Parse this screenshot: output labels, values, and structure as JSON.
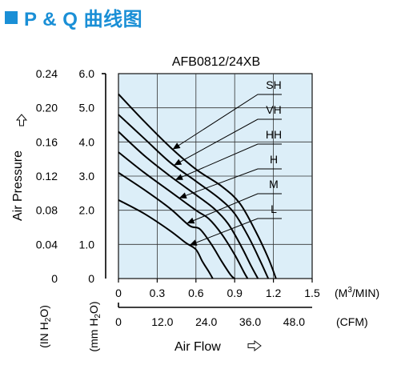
{
  "heading": {
    "text": "P & Q 曲线图",
    "icon": "blue-square-bullet",
    "color": "#1a8fd6"
  },
  "chart_data": {
    "type": "line",
    "title": "AFB0812/24XB",
    "xlabel": "Air Flow",
    "x_units": "(M3/MIN)",
    "x_units_parts": {
      "base": "(M",
      "sup": "3",
      "tail": "/MIN)"
    },
    "x2_units": "(CFM)",
    "ylabel": "Air Pressure",
    "y_units_left": "(IN H2O)",
    "y_units_right": "(mm H2O)",
    "xlim": [
      0,
      1.5
    ],
    "ylim": [
      0,
      6.0
    ],
    "x_ticks": [
      "0",
      "0.3",
      "0.6",
      "0.9",
      "1.2",
      "1.5"
    ],
    "x2_ticks": [
      "0",
      "12.0",
      "24.0",
      "36.0",
      "48.0"
    ],
    "x2_tick_values": [
      0,
      0.34,
      0.68,
      1.02,
      1.36
    ],
    "y_ticks": [
      "0",
      "1.0",
      "2.0",
      "3.0",
      "4.0",
      "5.0",
      "6.0"
    ],
    "y2_ticks": [
      "0",
      "0.04",
      "0.08",
      "0.12",
      "0.16",
      "0.20",
      "0.24"
    ],
    "grid": true,
    "plot_background": "#dceef8",
    "series": [
      {
        "name": "SH",
        "points": [
          [
            0,
            5.4
          ],
          [
            0.2,
            4.6
          ],
          [
            0.4,
            3.85
          ],
          [
            0.6,
            3.2
          ],
          [
            0.8,
            2.7
          ],
          [
            0.94,
            2.2
          ],
          [
            1.06,
            1.4
          ],
          [
            1.16,
            0.6
          ],
          [
            1.22,
            0
          ]
        ]
      },
      {
        "name": "VH",
        "points": [
          [
            0,
            4.8
          ],
          [
            0.2,
            4.1
          ],
          [
            0.4,
            3.4
          ],
          [
            0.6,
            2.85
          ],
          [
            0.78,
            2.35
          ],
          [
            0.9,
            1.9
          ],
          [
            1.01,
            1.2
          ],
          [
            1.1,
            0.5
          ],
          [
            1.16,
            0
          ]
        ]
      },
      {
        "name": "HH",
        "points": [
          [
            0,
            4.3
          ],
          [
            0.2,
            3.6
          ],
          [
            0.4,
            3.0
          ],
          [
            0.6,
            2.45
          ],
          [
            0.74,
            2.05
          ],
          [
            0.85,
            1.6
          ],
          [
            0.95,
            0.95
          ],
          [
            1.03,
            0.35
          ],
          [
            1.08,
            0
          ]
        ]
      },
      {
        "name": "H",
        "points": [
          [
            0,
            3.7
          ],
          [
            0.2,
            3.1
          ],
          [
            0.4,
            2.55
          ],
          [
            0.6,
            2.0
          ],
          [
            0.7,
            1.75
          ],
          [
            0.8,
            1.3
          ],
          [
            0.9,
            0.7
          ],
          [
            0.97,
            0.2
          ],
          [
            1.0,
            0
          ]
        ]
      },
      {
        "name": "M",
        "points": [
          [
            0,
            3.1
          ],
          [
            0.2,
            2.6
          ],
          [
            0.4,
            2.05
          ],
          [
            0.55,
            1.55
          ],
          [
            0.63,
            1.45
          ],
          [
            0.72,
            1.0
          ],
          [
            0.8,
            0.5
          ],
          [
            0.87,
            0.1
          ],
          [
            0.9,
            0
          ]
        ]
      },
      {
        "name": "L",
        "points": [
          [
            0,
            2.3
          ],
          [
            0.2,
            1.9
          ],
          [
            0.4,
            1.4
          ],
          [
            0.52,
            1.05
          ],
          [
            0.6,
            0.85
          ],
          [
            0.65,
            0.5
          ],
          [
            0.7,
            0.2
          ],
          [
            0.73,
            0
          ]
        ]
      }
    ]
  }
}
